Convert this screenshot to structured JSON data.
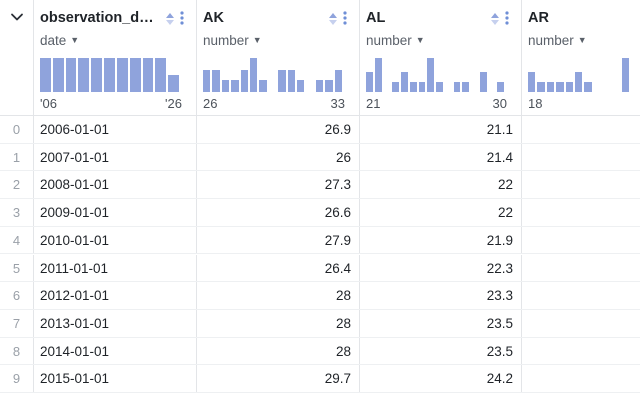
{
  "header": {
    "collapse_icon": "chevron-down-icon",
    "columns": [
      {
        "name": "observation_d…",
        "type": "date",
        "range_min": "'06",
        "range_max": "'26",
        "histogram": [
          1,
          1,
          1,
          1,
          1,
          1,
          1,
          1,
          1,
          1,
          0.5
        ]
      },
      {
        "name": "AK",
        "type": "number",
        "range_min": "26",
        "range_max": "33",
        "histogram": [
          0.65,
          0.65,
          0.35,
          0.35,
          0.65,
          1,
          0.35,
          0,
          0.65,
          0.65,
          0.35,
          0,
          0.35,
          0.35,
          0.65
        ]
      },
      {
        "name": "AL",
        "type": "number",
        "range_min": "21",
        "range_max": "30",
        "histogram": [
          0.6,
          1,
          0,
          0.3,
          0.6,
          0.3,
          0.3,
          1,
          0.3,
          0,
          0.3,
          0.3,
          0,
          0.6,
          0,
          0.3
        ]
      },
      {
        "name": "AR",
        "type": "number",
        "range_min": "18",
        "range_max": "",
        "histogram": [
          0.6,
          0.3,
          0.3,
          0.3,
          0.3,
          0.6,
          0.3,
          0,
          0,
          0,
          1,
          0,
          0,
          0.3,
          0.6
        ]
      }
    ]
  },
  "rows": [
    {
      "index": "0",
      "date": "2006-01-01",
      "AK": "26.9",
      "AL": "21.1"
    },
    {
      "index": "1",
      "date": "2007-01-01",
      "AK": "26",
      "AL": "21.4"
    },
    {
      "index": "2",
      "date": "2008-01-01",
      "AK": "27.3",
      "AL": "22"
    },
    {
      "index": "3",
      "date": "2009-01-01",
      "AK": "26.6",
      "AL": "22"
    },
    {
      "index": "4",
      "date": "2010-01-01",
      "AK": "27.9",
      "AL": "21.9"
    },
    {
      "index": "5",
      "date": "2011-01-01",
      "AK": "26.4",
      "AL": "22.3"
    },
    {
      "index": "6",
      "date": "2012-01-01",
      "AK": "28",
      "AL": "23.3"
    },
    {
      "index": "7",
      "date": "2013-01-01",
      "AK": "28",
      "AL": "23.5"
    },
    {
      "index": "8",
      "date": "2014-01-01",
      "AK": "28",
      "AL": "23.5"
    },
    {
      "index": "9",
      "date": "2015-01-01",
      "AK": "29.7",
      "AL": "24.2"
    }
  ],
  "colors": {
    "histogram_bar": "#8fa3dc",
    "sort_icon_up": "#8fa3dc",
    "sort_icon_down": "#c6d0ee",
    "kebab": "#6f8fd6"
  }
}
